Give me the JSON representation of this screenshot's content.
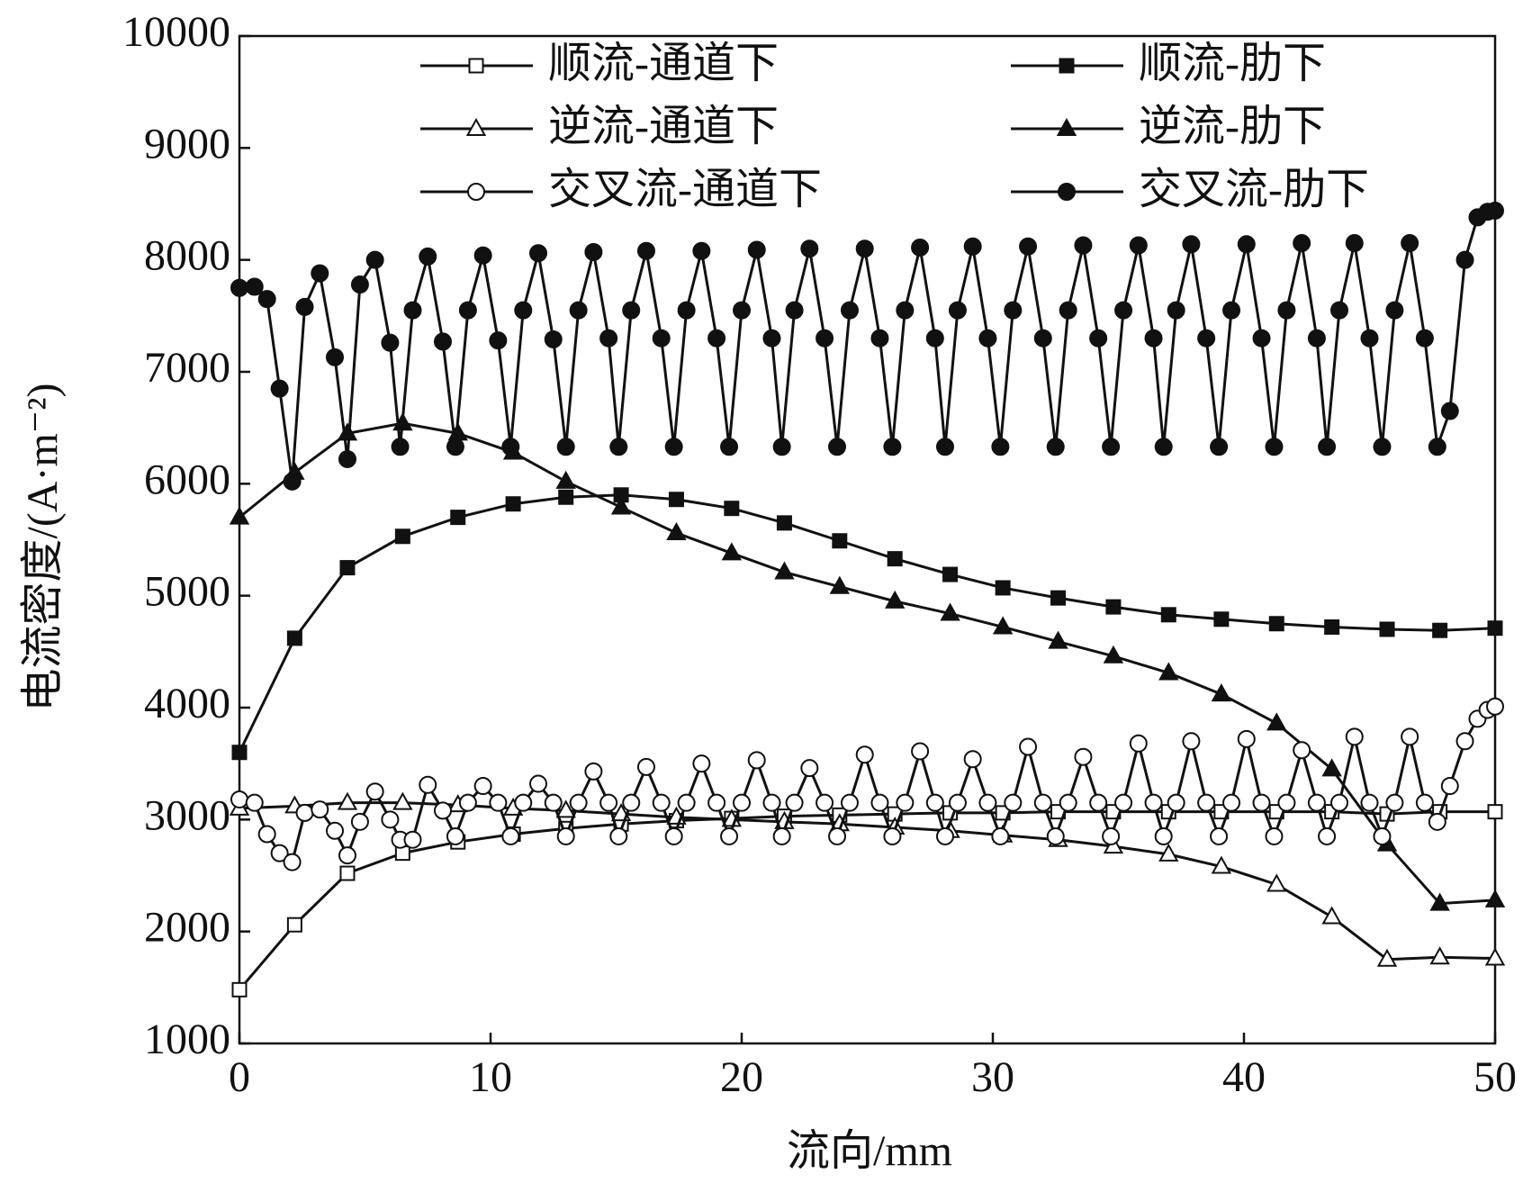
{
  "chart_data": {
    "type": "line",
    "xlabel": "流向/mm",
    "ylabel": "电流密度/(A·m⁻²)",
    "xlim": [
      0,
      50
    ],
    "ylim": [
      1000,
      10000
    ],
    "xticks": [
      0,
      10,
      20,
      30,
      40,
      50
    ],
    "yticks": [
      1000,
      2000,
      3000,
      4000,
      5000,
      6000,
      7000,
      8000,
      9000,
      10000
    ],
    "grid": false,
    "legend": "top",
    "series": [
      {
        "name": "顺流-通道下",
        "color": "#111111",
        "marker": "square",
        "filled": false,
        "x": [
          0,
          2.2,
          4.3,
          6.5,
          8.7,
          10.9,
          13,
          15.2,
          17.4,
          19.6,
          21.7,
          23.9,
          26.1,
          28.3,
          30.4,
          32.6,
          34.8,
          37,
          39.1,
          41.3,
          43.5,
          45.7,
          47.8,
          50
        ],
        "values": [
          1480,
          2060,
          2520,
          2700,
          2800,
          2870,
          2920,
          2960,
          2990,
          3010,
          3030,
          3040,
          3050,
          3060,
          3060,
          3070,
          3070,
          3070,
          3070,
          3070,
          3070,
          3050,
          3070,
          3070
        ]
      },
      {
        "name": "顺流-肋下",
        "color": "#111111",
        "marker": "square",
        "filled": true,
        "x": [
          0,
          2.2,
          4.3,
          6.5,
          8.7,
          10.9,
          13,
          15.2,
          17.4,
          19.6,
          21.7,
          23.9,
          26.1,
          28.3,
          30.4,
          32.6,
          34.8,
          37,
          39.1,
          41.3,
          43.5,
          45.7,
          47.8,
          50
        ],
        "values": [
          3600,
          4620,
          5250,
          5530,
          5700,
          5820,
          5880,
          5900,
          5860,
          5780,
          5650,
          5490,
          5330,
          5190,
          5070,
          4980,
          4900,
          4830,
          4790,
          4750,
          4720,
          4700,
          4690,
          4710
        ]
      },
      {
        "name": "逆流-通道下",
        "color": "#111111",
        "marker": "triangle",
        "filled": false,
        "x": [
          0,
          2.2,
          4.3,
          6.5,
          8.7,
          10.9,
          13,
          15.2,
          17.4,
          19.6,
          21.7,
          23.9,
          26.1,
          28.3,
          30.4,
          32.6,
          34.8,
          37,
          39.1,
          41.3,
          43.5,
          45.7,
          47.8,
          50
        ],
        "values": [
          3100,
          3120,
          3150,
          3150,
          3130,
          3100,
          3080,
          3050,
          3020,
          3000,
          2980,
          2960,
          2930,
          2900,
          2860,
          2820,
          2760,
          2690,
          2580,
          2420,
          2130,
          1750,
          1770,
          1760
        ]
      },
      {
        "name": "逆流-肋下",
        "color": "#111111",
        "marker": "triangle",
        "filled": true,
        "x": [
          0,
          2.2,
          4.3,
          6.5,
          8.7,
          10.9,
          13,
          15.2,
          17.4,
          19.6,
          21.7,
          23.9,
          26.1,
          28.3,
          30.4,
          32.6,
          34.8,
          37,
          39.1,
          41.3,
          43.5,
          45.7,
          47.8,
          50
        ],
        "values": [
          5700,
          6100,
          6450,
          6540,
          6450,
          6280,
          6020,
          5790,
          5560,
          5380,
          5210,
          5080,
          4950,
          4840,
          4720,
          4590,
          4460,
          4310,
          4120,
          3860,
          3450,
          2780,
          2250,
          2280
        ]
      },
      {
        "name": "交叉流-通道下",
        "color": "#111111",
        "marker": "circle",
        "filled": false,
        "x": [
          0,
          0.6,
          1.1,
          1.6,
          2.1,
          2.6,
          3.2,
          3.8,
          4.3,
          4.8,
          5.4,
          6.0,
          6.4,
          6.9,
          7.5,
          8.1,
          8.6,
          9.1,
          9.7,
          10.3,
          10.8,
          11.3,
          11.9,
          12.5,
          13.0,
          13.5,
          14.1,
          14.7,
          15.1,
          15.6,
          16.2,
          16.8,
          17.3,
          17.8,
          18.4,
          19.0,
          19.5,
          20.0,
          20.6,
          21.2,
          21.6,
          22.1,
          22.7,
          23.3,
          23.8,
          24.3,
          24.9,
          25.5,
          26.0,
          26.5,
          27.1,
          27.7,
          28.1,
          28.6,
          29.2,
          29.8,
          30.3,
          30.8,
          31.4,
          32.0,
          32.5,
          33.0,
          33.6,
          34.2,
          34.7,
          35.2,
          35.8,
          36.4,
          36.8,
          37.3,
          37.9,
          38.5,
          39.0,
          39.5,
          40.1,
          40.7,
          41.2,
          41.7,
          42.3,
          42.9,
          43.3,
          43.8,
          44.4,
          45.0,
          45.5,
          46.0,
          46.6,
          47.2,
          47.7,
          48.2,
          48.8,
          49.3,
          49.7,
          50
        ],
        "values": [
          3180,
          3150,
          2870,
          2700,
          2620,
          3060,
          3090,
          2900,
          2680,
          2980,
          3250,
          3000,
          2820,
          2820,
          3310,
          3080,
          2850,
          3150,
          3300,
          3150,
          2850,
          3150,
          3320,
          3150,
          2850,
          3150,
          3430,
          3150,
          2850,
          3150,
          3470,
          3150,
          2850,
          3150,
          3500,
          3150,
          2850,
          3150,
          3530,
          3150,
          2850,
          3150,
          3460,
          3150,
          2850,
          3150,
          3580,
          3150,
          2850,
          3150,
          3610,
          3150,
          2850,
          3150,
          3540,
          3150,
          2850,
          3150,
          3650,
          3150,
          2850,
          3150,
          3560,
          3150,
          2850,
          3150,
          3680,
          3150,
          2850,
          3150,
          3700,
          3150,
          2850,
          3150,
          3720,
          3150,
          2850,
          3150,
          3620,
          3150,
          2850,
          3150,
          3740,
          3150,
          2850,
          3150,
          3740,
          3150,
          2980,
          3300,
          3700,
          3900,
          3980,
          4010
        ]
      },
      {
        "name": "交叉流-肋下",
        "color": "#111111",
        "marker": "circle",
        "filled": true,
        "x": [
          0,
          0.6,
          1.1,
          1.6,
          2.1,
          2.6,
          3.2,
          3.8,
          4.3,
          4.8,
          5.4,
          6.0,
          6.4,
          6.9,
          7.5,
          8.1,
          8.6,
          9.1,
          9.7,
          10.3,
          10.8,
          11.3,
          11.9,
          12.5,
          13.0,
          13.5,
          14.1,
          14.7,
          15.1,
          15.6,
          16.2,
          16.8,
          17.3,
          17.8,
          18.4,
          19.0,
          19.5,
          20.0,
          20.6,
          21.2,
          21.6,
          22.1,
          22.7,
          23.3,
          23.8,
          24.3,
          24.9,
          25.5,
          26.0,
          26.5,
          27.1,
          27.7,
          28.1,
          28.6,
          29.2,
          29.8,
          30.3,
          30.8,
          31.4,
          32.0,
          32.5,
          33.0,
          33.6,
          34.2,
          34.7,
          35.2,
          35.8,
          36.4,
          36.8,
          37.3,
          37.9,
          38.5,
          39.0,
          39.5,
          40.1,
          40.7,
          41.2,
          41.7,
          42.3,
          42.9,
          43.3,
          43.8,
          44.4,
          45.0,
          45.5,
          46.0,
          46.6,
          47.2,
          47.7,
          48.2,
          48.8,
          49.3,
          49.7,
          50
        ],
        "values": [
          7750,
          7760,
          7650,
          6850,
          6020,
          7580,
          7880,
          7130,
          6220,
          7780,
          8000,
          7260,
          6330,
          7550,
          8030,
          7270,
          6330,
          7550,
          8040,
          7280,
          6330,
          7550,
          8060,
          7290,
          6330,
          7550,
          8070,
          7300,
          6330,
          7550,
          8080,
          7300,
          6330,
          7550,
          8080,
          7300,
          6330,
          7550,
          8090,
          7300,
          6330,
          7550,
          8100,
          7300,
          6330,
          7550,
          8100,
          7300,
          6330,
          7550,
          8110,
          7300,
          6330,
          7550,
          8120,
          7300,
          6330,
          7550,
          8120,
          7300,
          6330,
          7550,
          8130,
          7300,
          6330,
          7550,
          8130,
          7300,
          6330,
          7550,
          8140,
          7300,
          6330,
          7550,
          8140,
          7300,
          6330,
          7550,
          8150,
          7300,
          6330,
          7550,
          8150,
          7300,
          6330,
          7550,
          8150,
          7300,
          6330,
          6650,
          8000,
          8380,
          8430,
          8440
        ]
      }
    ]
  }
}
